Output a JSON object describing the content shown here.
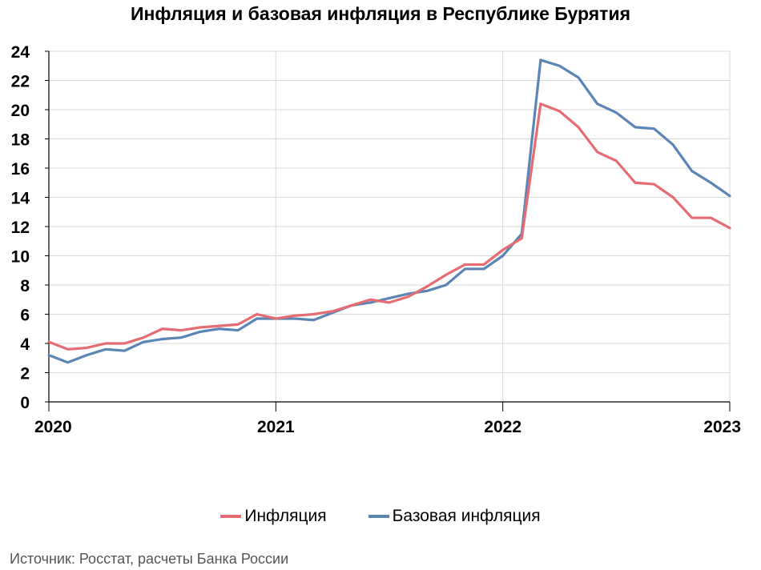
{
  "title": "Инфляция и базовая инфляция в Республике Бурятия",
  "source": "Источник: Росстат, расчеты Банка России",
  "colors": {
    "inflation": "#e46c72",
    "core": "#5b85b5",
    "grid": "#d9d9d9",
    "axis": "#000000"
  },
  "chart_data": {
    "type": "line",
    "title": "Инфляция и базовая инфляция в Республике Бурятия",
    "xlabel": "",
    "ylabel": "",
    "ylim": [
      0,
      24
    ],
    "yticks": [
      "0",
      "2",
      "4",
      "6",
      "8",
      "10",
      "12",
      "14",
      "16",
      "18",
      "20",
      "22",
      "24"
    ],
    "x_tick_labels": [
      "2020",
      "2021",
      "2022",
      "2023"
    ],
    "x_start": "2020-01",
    "x_end": "2023-01",
    "grid": true,
    "legend_position": "bottom",
    "x": [
      "2020-01",
      "2020-02",
      "2020-03",
      "2020-04",
      "2020-05",
      "2020-06",
      "2020-07",
      "2020-08",
      "2020-09",
      "2020-10",
      "2020-11",
      "2020-12",
      "2021-01",
      "2021-02",
      "2021-03",
      "2021-04",
      "2021-05",
      "2021-06",
      "2021-07",
      "2021-08",
      "2021-09",
      "2021-10",
      "2021-11",
      "2021-12",
      "2022-01",
      "2022-02",
      "2022-03",
      "2022-04",
      "2022-05",
      "2022-06",
      "2022-07",
      "2022-08",
      "2022-09",
      "2022-10",
      "2022-11",
      "2022-12",
      "2023-01"
    ],
    "series": [
      {
        "name": "Инфляция",
        "key": "inflation",
        "values": [
          4.1,
          3.6,
          3.7,
          4.0,
          4.0,
          4.4,
          5.0,
          4.9,
          5.1,
          5.2,
          5.3,
          6.0,
          5.7,
          5.9,
          6.0,
          6.2,
          6.6,
          7.0,
          6.8,
          7.2,
          7.9,
          8.7,
          9.4,
          9.4,
          10.4,
          11.2,
          20.4,
          19.9,
          18.8,
          17.1,
          16.5,
          15.0,
          14.9,
          14.0,
          12.6,
          12.6,
          11.9
        ]
      },
      {
        "name": "Базовая инфляция",
        "key": "core",
        "values": [
          3.2,
          2.7,
          3.2,
          3.6,
          3.5,
          4.1,
          4.3,
          4.4,
          4.8,
          5.0,
          4.9,
          5.7,
          5.7,
          5.7,
          5.6,
          6.1,
          6.6,
          6.8,
          7.1,
          7.4,
          7.6,
          8.0,
          9.1,
          9.1,
          10.0,
          11.5,
          23.4,
          23.0,
          22.2,
          20.4,
          19.8,
          18.8,
          18.7,
          17.6,
          15.8,
          15.0,
          14.1
        ]
      }
    ]
  }
}
